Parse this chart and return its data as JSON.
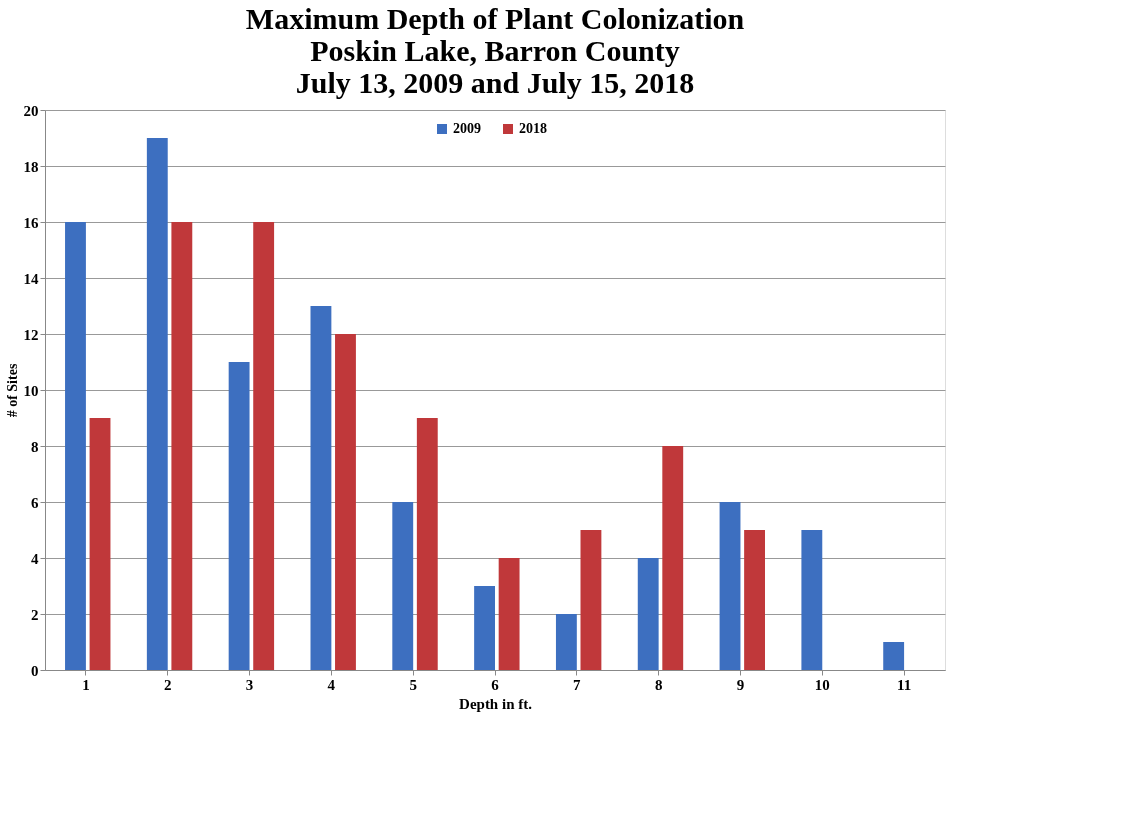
{
  "chart_data": {
    "type": "bar",
    "title": "Maximum Depth of Plant Colonization\nPoskin Lake, Barron County\nJuly 13, 2009 and July 15, 2018",
    "xlabel": "Depth in ft.",
    "ylabel": "# of Sites",
    "categories": [
      "1",
      "2",
      "3",
      "4",
      "5",
      "6",
      "7",
      "8",
      "9",
      "10",
      "11"
    ],
    "series": [
      {
        "name": "2009",
        "color": "#3d6fc0",
        "values": [
          16,
          19,
          11,
          13,
          6,
          3,
          2,
          4,
          6,
          5,
          1
        ]
      },
      {
        "name": "2018",
        "color": "#c0383a",
        "values": [
          9,
          16,
          16,
          12,
          9,
          4,
          5,
          8,
          5,
          null,
          null
        ]
      }
    ],
    "ylim": [
      0,
      20
    ],
    "yticks": [
      0,
      2,
      4,
      6,
      8,
      10,
      12,
      14,
      16,
      18,
      20
    ],
    "grid": "y",
    "legend": "top"
  }
}
